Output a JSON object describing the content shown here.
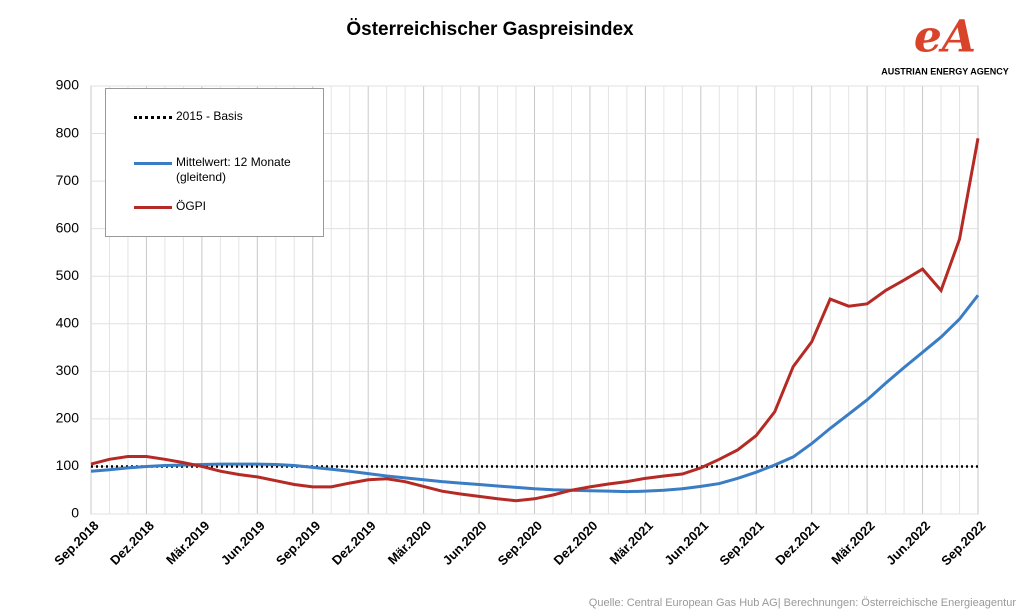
{
  "chart_data": {
    "type": "line",
    "title": "Österreichischer  Gaspreisindex",
    "logo": {
      "mark": "eA",
      "name": "AUSTRIAN ENERGY AGENCY"
    },
    "source": "Quelle: Central European Gas Hub AG| Berechnungen: Österreichische Energieagentur",
    "categories": [
      "Sep.2018",
      null,
      null,
      "Dez.2018",
      null,
      null,
      "Mär.2019",
      null,
      null,
      "Jun.2019",
      null,
      null,
      "Sep.2019",
      null,
      null,
      "Dez.2019",
      null,
      null,
      "Mär.2020",
      null,
      null,
      "Jun.2020",
      null,
      null,
      "Sep.2020",
      null,
      null,
      "Dez.2020",
      null,
      null,
      "Mär.2021",
      null,
      null,
      "Jun.2021",
      null,
      null,
      "Sep.2021",
      null,
      null,
      "Dez.2021",
      null,
      null,
      "Mär.2022",
      null,
      null,
      "Jun.2022",
      null,
      null,
      "Sep.2022"
    ],
    "series": [
      {
        "name": "2015 - Basis",
        "color": "#000000",
        "dash": "dotted",
        "values": [
          100,
          100,
          100,
          100,
          100,
          100,
          100,
          100,
          100,
          100,
          100,
          100,
          100,
          100,
          100,
          100,
          100,
          100,
          100,
          100,
          100,
          100,
          100,
          100,
          100,
          100,
          100,
          100,
          100,
          100,
          100,
          100,
          100,
          100,
          100,
          100,
          100,
          100,
          100,
          100,
          100,
          100,
          100,
          100,
          100,
          100,
          100,
          100,
          100
        ]
      },
      {
        "name": "Mittelwert: 12 Monate (gleitend)",
        "color": "#3a7dc4",
        "dash": "solid",
        "values": [
          90,
          93,
          97,
          100,
          102,
          103,
          104,
          105,
          105,
          105,
          104,
          102,
          98,
          94,
          90,
          85,
          80,
          76,
          72,
          68,
          65,
          62,
          59,
          56,
          53,
          51,
          50,
          49,
          48,
          47,
          48,
          50,
          53,
          58,
          64,
          75,
          88,
          103,
          120,
          148,
          180,
          210,
          240,
          275,
          308,
          340,
          372,
          410,
          460
        ]
      },
      {
        "name": "ÖGPI",
        "color": "#b52a24",
        "dash": "solid",
        "values": [
          105,
          115,
          121,
          121,
          115,
          108,
          100,
          90,
          83,
          78,
          70,
          62,
          57,
          57,
          65,
          72,
          74,
          68,
          58,
          48,
          42,
          37,
          32,
          28,
          32,
          40,
          50,
          57,
          63,
          68,
          75,
          80,
          84,
          97,
          115,
          135,
          165,
          215,
          310,
          362,
          452,
          437,
          442,
          470,
          492,
          515,
          470,
          578,
          790
        ]
      }
    ],
    "ylim": [
      0,
      900
    ],
    "yticks": [
      0,
      100,
      200,
      300,
      400,
      500,
      600,
      700,
      800,
      900
    ],
    "grid": true
  }
}
